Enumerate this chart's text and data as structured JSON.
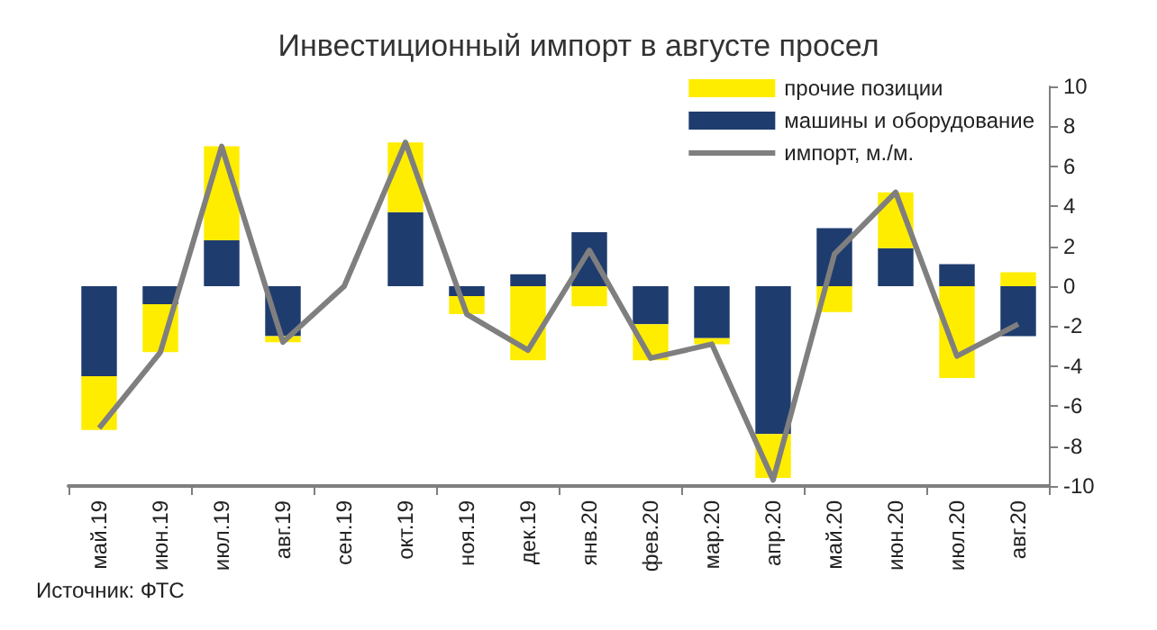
{
  "chart_data": {
    "type": "bar",
    "title": "Инвестиционный импорт в августе просел",
    "categories": [
      "май.19",
      "июн.19",
      "июл.19",
      "авг.19",
      "сен.19",
      "окт.19",
      "ноя.19",
      "дек.19",
      "янв.20",
      "фев.20",
      "мар.20",
      "апр.20",
      "май.20",
      "июн.20",
      "июл.20",
      "авг.20"
    ],
    "series": [
      {
        "name": "машины и оборудование",
        "color": "#1f3c6e",
        "values": [
          -4.5,
          -0.9,
          2.3,
          -2.5,
          0,
          3.7,
          -0.5,
          0.6,
          2.7,
          -1.9,
          -2.6,
          -7.4,
          2.9,
          1.9,
          1.1,
          -2.5
        ]
      },
      {
        "name": "прочие позиции",
        "color": "#ffed00",
        "values": [
          -2.7,
          -2.4,
          4.7,
          -0.3,
          0,
          3.5,
          -0.9,
          -3.7,
          -1.0,
          -1.8,
          -0.3,
          -2.2,
          -1.3,
          2.8,
          -4.6,
          0.7
        ]
      },
      {
        "name": "импорт, м./м.",
        "type": "line",
        "color": "#7f7f7f",
        "values": [
          -7.1,
          -3.3,
          7.0,
          -2.8,
          0,
          7.2,
          -1.4,
          -3.2,
          1.8,
          -3.6,
          -2.9,
          -9.7,
          1.6,
          4.7,
          -3.5,
          -1.9
        ]
      }
    ],
    "stacked": true,
    "ylim": [
      -10,
      10
    ],
    "yticks": [
      -10,
      -8,
      -6,
      -4,
      -2,
      0,
      2,
      4,
      6,
      8,
      10
    ],
    "grid": false,
    "legend": "top right",
    "marker": "none",
    "line_style": "solid",
    "annotations": [
      "Источник: ФТС"
    ]
  }
}
